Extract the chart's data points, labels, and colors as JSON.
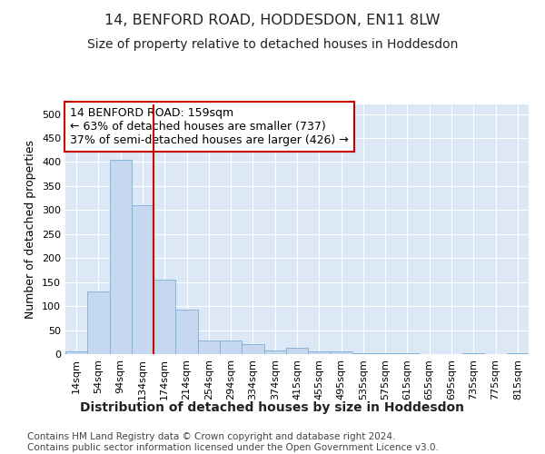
{
  "title": "14, BENFORD ROAD, HODDESDON, EN11 8LW",
  "subtitle": "Size of property relative to detached houses in Hoddesdon",
  "xlabel": "Distribution of detached houses by size in Hoddesdon",
  "ylabel": "Number of detached properties",
  "bar_values": [
    5,
    130,
    405,
    310,
    155,
    93,
    28,
    28,
    20,
    8,
    13,
    5,
    6,
    1,
    1,
    1,
    0,
    0,
    2,
    0,
    1
  ],
  "bar_labels": [
    "14sqm",
    "54sqm",
    "94sqm",
    "134sqm",
    "174sqm",
    "214sqm",
    "254sqm",
    "294sqm",
    "334sqm",
    "374sqm",
    "415sqm",
    "455sqm",
    "495sqm",
    "535sqm",
    "575sqm",
    "615sqm",
    "655sqm",
    "695sqm",
    "735sqm",
    "775sqm",
    "815sqm"
  ],
  "bar_color": "#c5d8f0",
  "bar_edgecolor": "#7aaed6",
  "vline_x": 3.5,
  "vline_color": "#cc0000",
  "annotation_text": "14 BENFORD ROAD: 159sqm\n← 63% of detached houses are smaller (737)\n37% of semi-detached houses are larger (426) →",
  "annotation_box_color": "#cc0000",
  "ylim": [
    0,
    520
  ],
  "yticks": [
    0,
    50,
    100,
    150,
    200,
    250,
    300,
    350,
    400,
    450,
    500
  ],
  "footnote": "Contains HM Land Registry data © Crown copyright and database right 2024.\nContains public sector information licensed under the Open Government Licence v3.0.",
  "bg_color": "#ffffff",
  "plot_bg_color": "#dce8f5",
  "title_fontsize": 11.5,
  "subtitle_fontsize": 10,
  "xlabel_fontsize": 10,
  "ylabel_fontsize": 9,
  "tick_fontsize": 8,
  "annotation_fontsize": 9,
  "footnote_fontsize": 7.5
}
